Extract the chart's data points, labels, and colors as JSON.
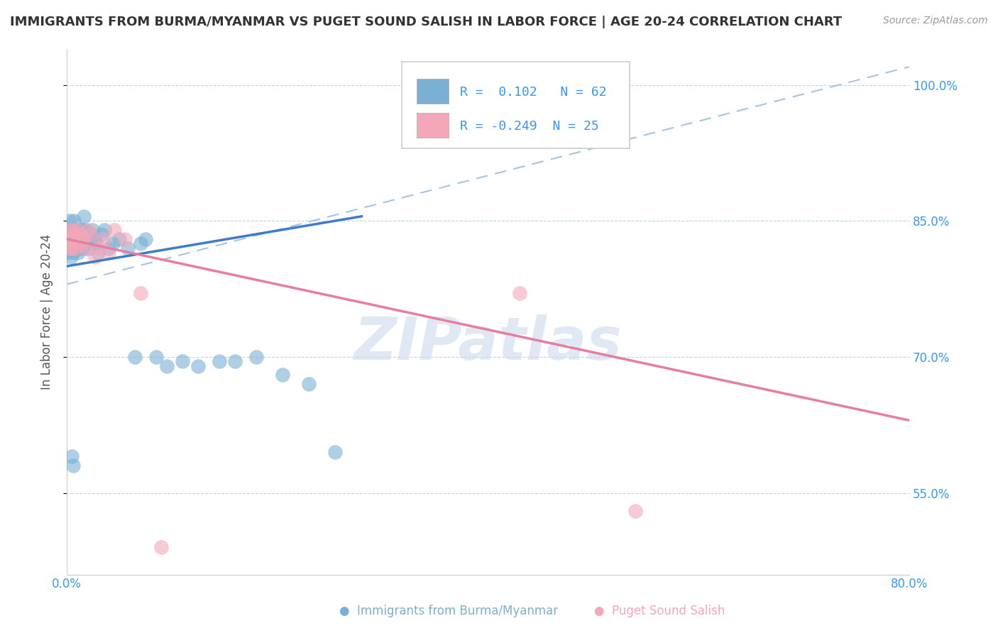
{
  "title": "IMMIGRANTS FROM BURMA/MYANMAR VS PUGET SOUND SALISH IN LABOR FORCE | AGE 20-24 CORRELATION CHART",
  "source": "Source: ZipAtlas.com",
  "ylabel": "In Labor Force | Age 20-24",
  "xlim": [
    0.0,
    0.8
  ],
  "ylim": [
    0.46,
    1.04
  ],
  "xticks": [
    0.0,
    0.2,
    0.4,
    0.6,
    0.8
  ],
  "xticklabels": [
    "0.0%",
    "",
    "",
    "",
    "80.0%"
  ],
  "yticks": [
    0.55,
    0.7,
    0.85,
    1.0
  ],
  "yticklabels": [
    "55.0%",
    "70.0%",
    "85.0%",
    "100.0%"
  ],
  "blue_color": "#7BAFD4",
  "pink_color": "#F4A7B9",
  "blue_line_color": "#3B7DC9",
  "pink_line_color": "#E87DA0",
  "dashed_line_color": "#A8C4DC",
  "legend_R_blue": "R =  0.102",
  "legend_N_blue": "N = 62",
  "legend_R_pink": "R = -0.249",
  "legend_N_pink": "N = 25",
  "watermark": "ZIPatlas",
  "blue_line_x0": 0.0,
  "blue_line_x1": 0.28,
  "blue_line_y0": 0.8,
  "blue_line_y1": 0.855,
  "pink_line_x0": 0.0,
  "pink_line_x1": 0.8,
  "pink_line_y0": 0.83,
  "pink_line_y1": 0.63,
  "dash_line_x0": 0.0,
  "dash_line_x1": 0.8,
  "dash_line_y0": 0.78,
  "dash_line_y1": 1.02,
  "blue_scatter_x": [
    0.001,
    0.001,
    0.002,
    0.002,
    0.002,
    0.003,
    0.003,
    0.003,
    0.004,
    0.004,
    0.004,
    0.005,
    0.005,
    0.005,
    0.006,
    0.006,
    0.007,
    0.007,
    0.008,
    0.008,
    0.008,
    0.009,
    0.009,
    0.01,
    0.01,
    0.011,
    0.012,
    0.013,
    0.014,
    0.015,
    0.015,
    0.016,
    0.017,
    0.018,
    0.019,
    0.02,
    0.022,
    0.024,
    0.026,
    0.028,
    0.03,
    0.033,
    0.036,
    0.04,
    0.044,
    0.05,
    0.058,
    0.065,
    0.07,
    0.075,
    0.085,
    0.095,
    0.11,
    0.125,
    0.145,
    0.16,
    0.18,
    0.205,
    0.23,
    0.255,
    0.005,
    0.006
  ],
  "blue_scatter_y": [
    0.82,
    0.815,
    0.84,
    0.82,
    0.835,
    0.85,
    0.83,
    0.82,
    0.84,
    0.825,
    0.81,
    0.835,
    0.82,
    0.83,
    0.84,
    0.815,
    0.85,
    0.82,
    0.84,
    0.83,
    0.82,
    0.835,
    0.82,
    0.83,
    0.825,
    0.815,
    0.84,
    0.835,
    0.83,
    0.84,
    0.82,
    0.855,
    0.84,
    0.825,
    0.835,
    0.82,
    0.835,
    0.84,
    0.83,
    0.825,
    0.815,
    0.835,
    0.84,
    0.82,
    0.825,
    0.83,
    0.82,
    0.7,
    0.825,
    0.83,
    0.7,
    0.69,
    0.695,
    0.69,
    0.695,
    0.695,
    0.7,
    0.68,
    0.67,
    0.595,
    0.59,
    0.58
  ],
  "pink_scatter_x": [
    0.001,
    0.002,
    0.003,
    0.004,
    0.005,
    0.006,
    0.007,
    0.008,
    0.01,
    0.012,
    0.014,
    0.016,
    0.018,
    0.02,
    0.023,
    0.027,
    0.03,
    0.035,
    0.04,
    0.045,
    0.055,
    0.07,
    0.09,
    0.43,
    0.54
  ],
  "pink_scatter_y": [
    0.83,
    0.82,
    0.84,
    0.83,
    0.82,
    0.84,
    0.835,
    0.82,
    0.84,
    0.835,
    0.825,
    0.83,
    0.82,
    0.84,
    0.835,
    0.81,
    0.82,
    0.83,
    0.815,
    0.84,
    0.83,
    0.77,
    0.49,
    0.77,
    0.53
  ]
}
